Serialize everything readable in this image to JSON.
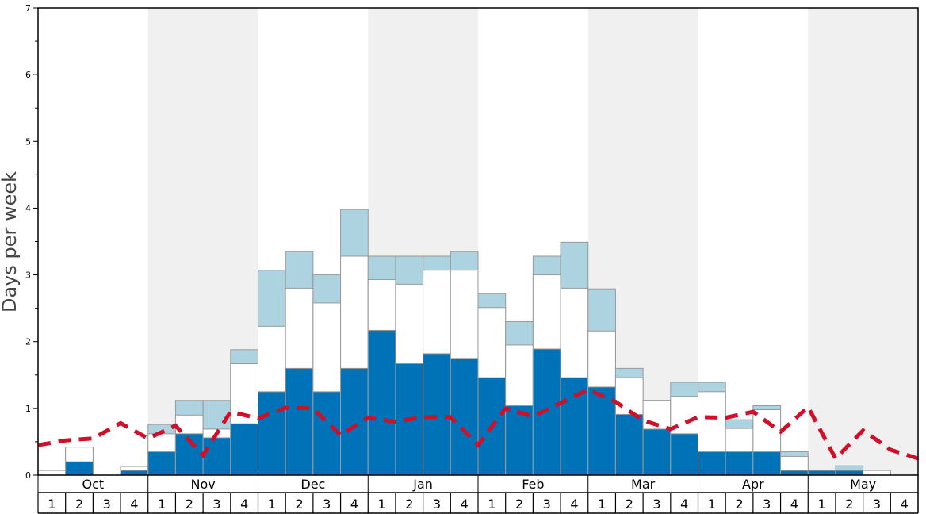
{
  "chart_data": {
    "type": "bar",
    "ylabel": "Days per week",
    "ylim": [
      0,
      7
    ],
    "yticks": [
      "0",
      "1",
      "2",
      "3",
      "4",
      "5",
      "6",
      "7"
    ],
    "months": [
      "Oct",
      "Nov",
      "Dec",
      "Jan",
      "Feb",
      "Mar",
      "Apr",
      "May"
    ],
    "week_labels": [
      "1",
      "2",
      "3",
      "4"
    ],
    "colors": {
      "dark": "#0072b8",
      "middle": "#ffffff",
      "light": "#aed3e0",
      "line": "#d0102a",
      "band": "#f0f0f0"
    },
    "series": [
      {
        "values": [
          0.0,
          0.2,
          0.0,
          0.07,
          0.35,
          0.62,
          0.56,
          0.77,
          1.25,
          1.6,
          1.25,
          1.6,
          2.17,
          1.67,
          1.82,
          1.75,
          1.46,
          1.04,
          1.89,
          1.46,
          1.32,
          0.91,
          0.69,
          0.62,
          0.35,
          0.35,
          0.35,
          0.07,
          0.07,
          0.07,
          0.0,
          0.0
        ]
      },
      {
        "values": [
          0.07,
          0.42,
          0.0,
          0.13,
          0.62,
          0.9,
          0.69,
          1.67,
          2.23,
          2.8,
          2.58,
          3.28,
          2.93,
          2.86,
          3.07,
          3.07,
          2.51,
          1.95,
          3.0,
          2.8,
          2.16,
          1.46,
          1.12,
          1.18,
          1.25,
          0.7,
          0.98,
          0.28,
          0.07,
          0.07,
          0.07,
          0.0
        ]
      },
      {
        "values": [
          0.07,
          0.42,
          0.0,
          0.13,
          0.76,
          1.12,
          1.12,
          1.88,
          3.07,
          3.35,
          3.0,
          3.98,
          3.28,
          3.28,
          3.28,
          3.35,
          2.72,
          2.3,
          3.28,
          3.49,
          2.79,
          1.6,
          1.12,
          1.39,
          1.39,
          0.83,
          1.04,
          0.35,
          0.07,
          0.14,
          0.07,
          0.0
        ]
      },
      {
        "values": [
          0.45,
          0.52,
          0.55,
          0.78,
          0.55,
          0.74,
          0.3,
          0.95,
          0.85,
          1.01,
          1.0,
          0.6,
          0.86,
          0.8,
          0.87,
          0.87,
          0.45,
          1.0,
          0.88,
          1.08,
          1.28,
          1.1,
          0.82,
          0.69,
          0.87,
          0.86,
          0.95,
          0.65,
          1.02,
          0.25,
          0.67,
          0.38,
          0.25
        ]
      }
    ]
  }
}
